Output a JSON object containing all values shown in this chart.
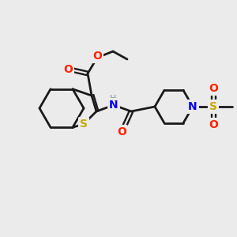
{
  "bg_color": "#ebebeb",
  "bond_color": "#1a1a1a",
  "atom_colors": {
    "O": "#ff2200",
    "S_thio": "#c8a800",
    "S_sulfonyl": "#c8a800",
    "N": "#0000ee",
    "H": "#6fa0a0",
    "C": "#1a1a1a"
  },
  "figsize": [
    3.0,
    3.0
  ],
  "dpi": 100
}
